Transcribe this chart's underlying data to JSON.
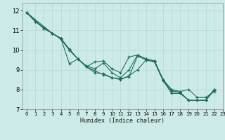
{
  "xlabel": "Humidex (Indice chaleur)",
  "bg_color": "#cceae7",
  "grid_color": "#b8d8d5",
  "line_color": "#1a6b5a",
  "xlim": [
    -0.5,
    23
  ],
  "ylim": [
    7,
    12.4
  ],
  "xticks": [
    0,
    1,
    2,
    3,
    4,
    5,
    6,
    7,
    8,
    9,
    10,
    11,
    12,
    13,
    14,
    15,
    16,
    17,
    18,
    19,
    20,
    21,
    22,
    23
  ],
  "yticks": [
    7,
    8,
    9,
    10,
    11,
    12
  ],
  "series1": [
    [
      0,
      11.9
    ],
    [
      1,
      11.45
    ],
    [
      2,
      11.15
    ],
    [
      3,
      10.85
    ],
    [
      4,
      10.55
    ],
    [
      5,
      10.0
    ],
    [
      6,
      9.55
    ],
    [
      7,
      9.15
    ],
    [
      8,
      8.95
    ],
    [
      9,
      8.75
    ],
    [
      10,
      8.6
    ],
    [
      11,
      8.55
    ],
    [
      12,
      8.65
    ],
    [
      13,
      9.7
    ],
    [
      14,
      9.5
    ],
    [
      15,
      9.4
    ],
    [
      16,
      8.45
    ],
    [
      17,
      7.8
    ],
    [
      18,
      7.8
    ],
    [
      19,
      7.45
    ],
    [
      20,
      7.45
    ],
    [
      21,
      7.45
    ],
    [
      22,
      8.0
    ]
  ],
  "series2": [
    [
      0,
      11.9
    ],
    [
      1,
      11.45
    ],
    [
      2,
      11.1
    ],
    [
      3,
      10.85
    ],
    [
      4,
      10.6
    ],
    [
      5,
      9.3
    ],
    [
      6,
      9.55
    ],
    [
      7,
      9.15
    ],
    [
      8,
      9.4
    ],
    [
      9,
      9.45
    ],
    [
      10,
      9.05
    ],
    [
      11,
      8.85
    ],
    [
      12,
      9.65
    ],
    [
      13,
      9.75
    ],
    [
      14,
      9.55
    ],
    [
      15,
      9.45
    ],
    [
      16,
      8.5
    ],
    [
      17,
      7.9
    ],
    [
      18,
      7.85
    ],
    [
      19,
      7.45
    ],
    [
      20,
      7.45
    ],
    [
      21,
      7.45
    ],
    [
      22,
      8.0
    ]
  ],
  "series3": [
    [
      0,
      11.9
    ],
    [
      2,
      11.1
    ],
    [
      3,
      10.85
    ],
    [
      4,
      10.6
    ],
    [
      5,
      10.0
    ],
    [
      6,
      9.55
    ],
    [
      7,
      9.2
    ],
    [
      8,
      9.05
    ],
    [
      9,
      9.35
    ],
    [
      10,
      8.85
    ],
    [
      11,
      8.6
    ],
    [
      12,
      9.0
    ],
    [
      13,
      9.75
    ],
    [
      14,
      9.55
    ],
    [
      15,
      9.45
    ],
    [
      16,
      8.5
    ],
    [
      17,
      8.0
    ],
    [
      18,
      7.9
    ],
    [
      19,
      8.0
    ],
    [
      20,
      7.6
    ],
    [
      21,
      7.6
    ],
    [
      22,
      7.9
    ]
  ],
  "series4": [
    [
      0,
      11.9
    ],
    [
      3,
      10.85
    ],
    [
      4,
      10.6
    ],
    [
      5,
      10.05
    ],
    [
      6,
      9.55
    ],
    [
      7,
      9.15
    ],
    [
      8,
      8.85
    ],
    [
      9,
      8.8
    ],
    [
      10,
      8.6
    ],
    [
      11,
      8.5
    ],
    [
      12,
      8.7
    ],
    [
      13,
      9.0
    ],
    [
      14,
      9.5
    ],
    [
      15,
      9.4
    ],
    [
      16,
      8.45
    ],
    [
      17,
      7.95
    ],
    [
      18,
      7.85
    ],
    [
      19,
      7.45
    ],
    [
      20,
      7.45
    ],
    [
      21,
      7.45
    ],
    [
      22,
      7.95
    ]
  ]
}
